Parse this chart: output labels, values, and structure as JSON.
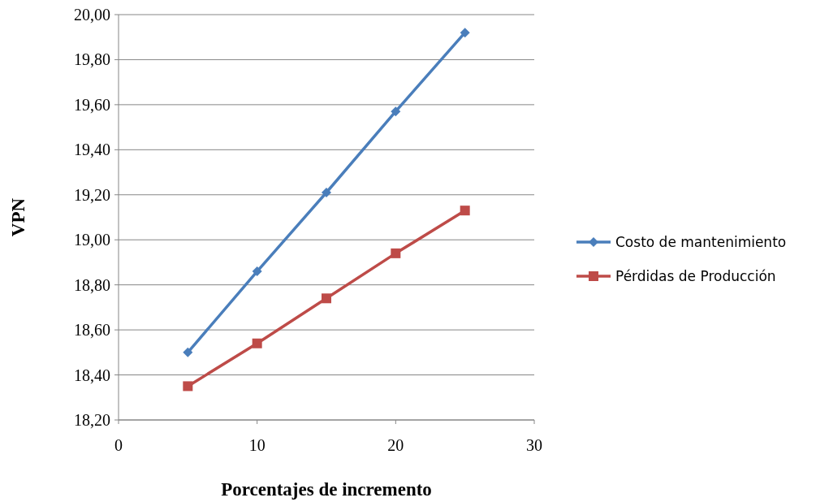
{
  "chart_data": {
    "type": "line",
    "xlabel": "Porcentajes de incremento",
    "ylabel": "VPN",
    "x": [
      5,
      10,
      15,
      20,
      25
    ],
    "series": [
      {
        "name": "Costo de mantenimiento",
        "color": "#4a7ebb",
        "marker": "diamond",
        "values": [
          18.5,
          18.86,
          19.21,
          19.57,
          19.92
        ]
      },
      {
        "name": "Pérdidas de Producción",
        "color": "#be4b48",
        "marker": "square",
        "values": [
          18.35,
          18.54,
          18.74,
          18.94,
          19.13
        ]
      }
    ],
    "xlim": [
      0,
      30
    ],
    "xticks": [
      0,
      10,
      20,
      30
    ],
    "ylim": [
      18.2,
      20.0
    ],
    "yticks": [
      {
        "value": 18.2,
        "label": "18,20"
      },
      {
        "value": 18.4,
        "label": "18,40"
      },
      {
        "value": 18.6,
        "label": "18,60"
      },
      {
        "value": 18.8,
        "label": "18,80"
      },
      {
        "value": 19.0,
        "label": "19,00"
      },
      {
        "value": 19.2,
        "label": "19,20"
      },
      {
        "value": 19.4,
        "label": "19,40"
      },
      {
        "value": 19.6,
        "label": "19,60"
      },
      {
        "value": 19.8,
        "label": "19,80"
      },
      {
        "value": 20.0,
        "label": "20,00"
      }
    ],
    "grid": "y",
    "legend": "right",
    "line_style": "solid"
  }
}
